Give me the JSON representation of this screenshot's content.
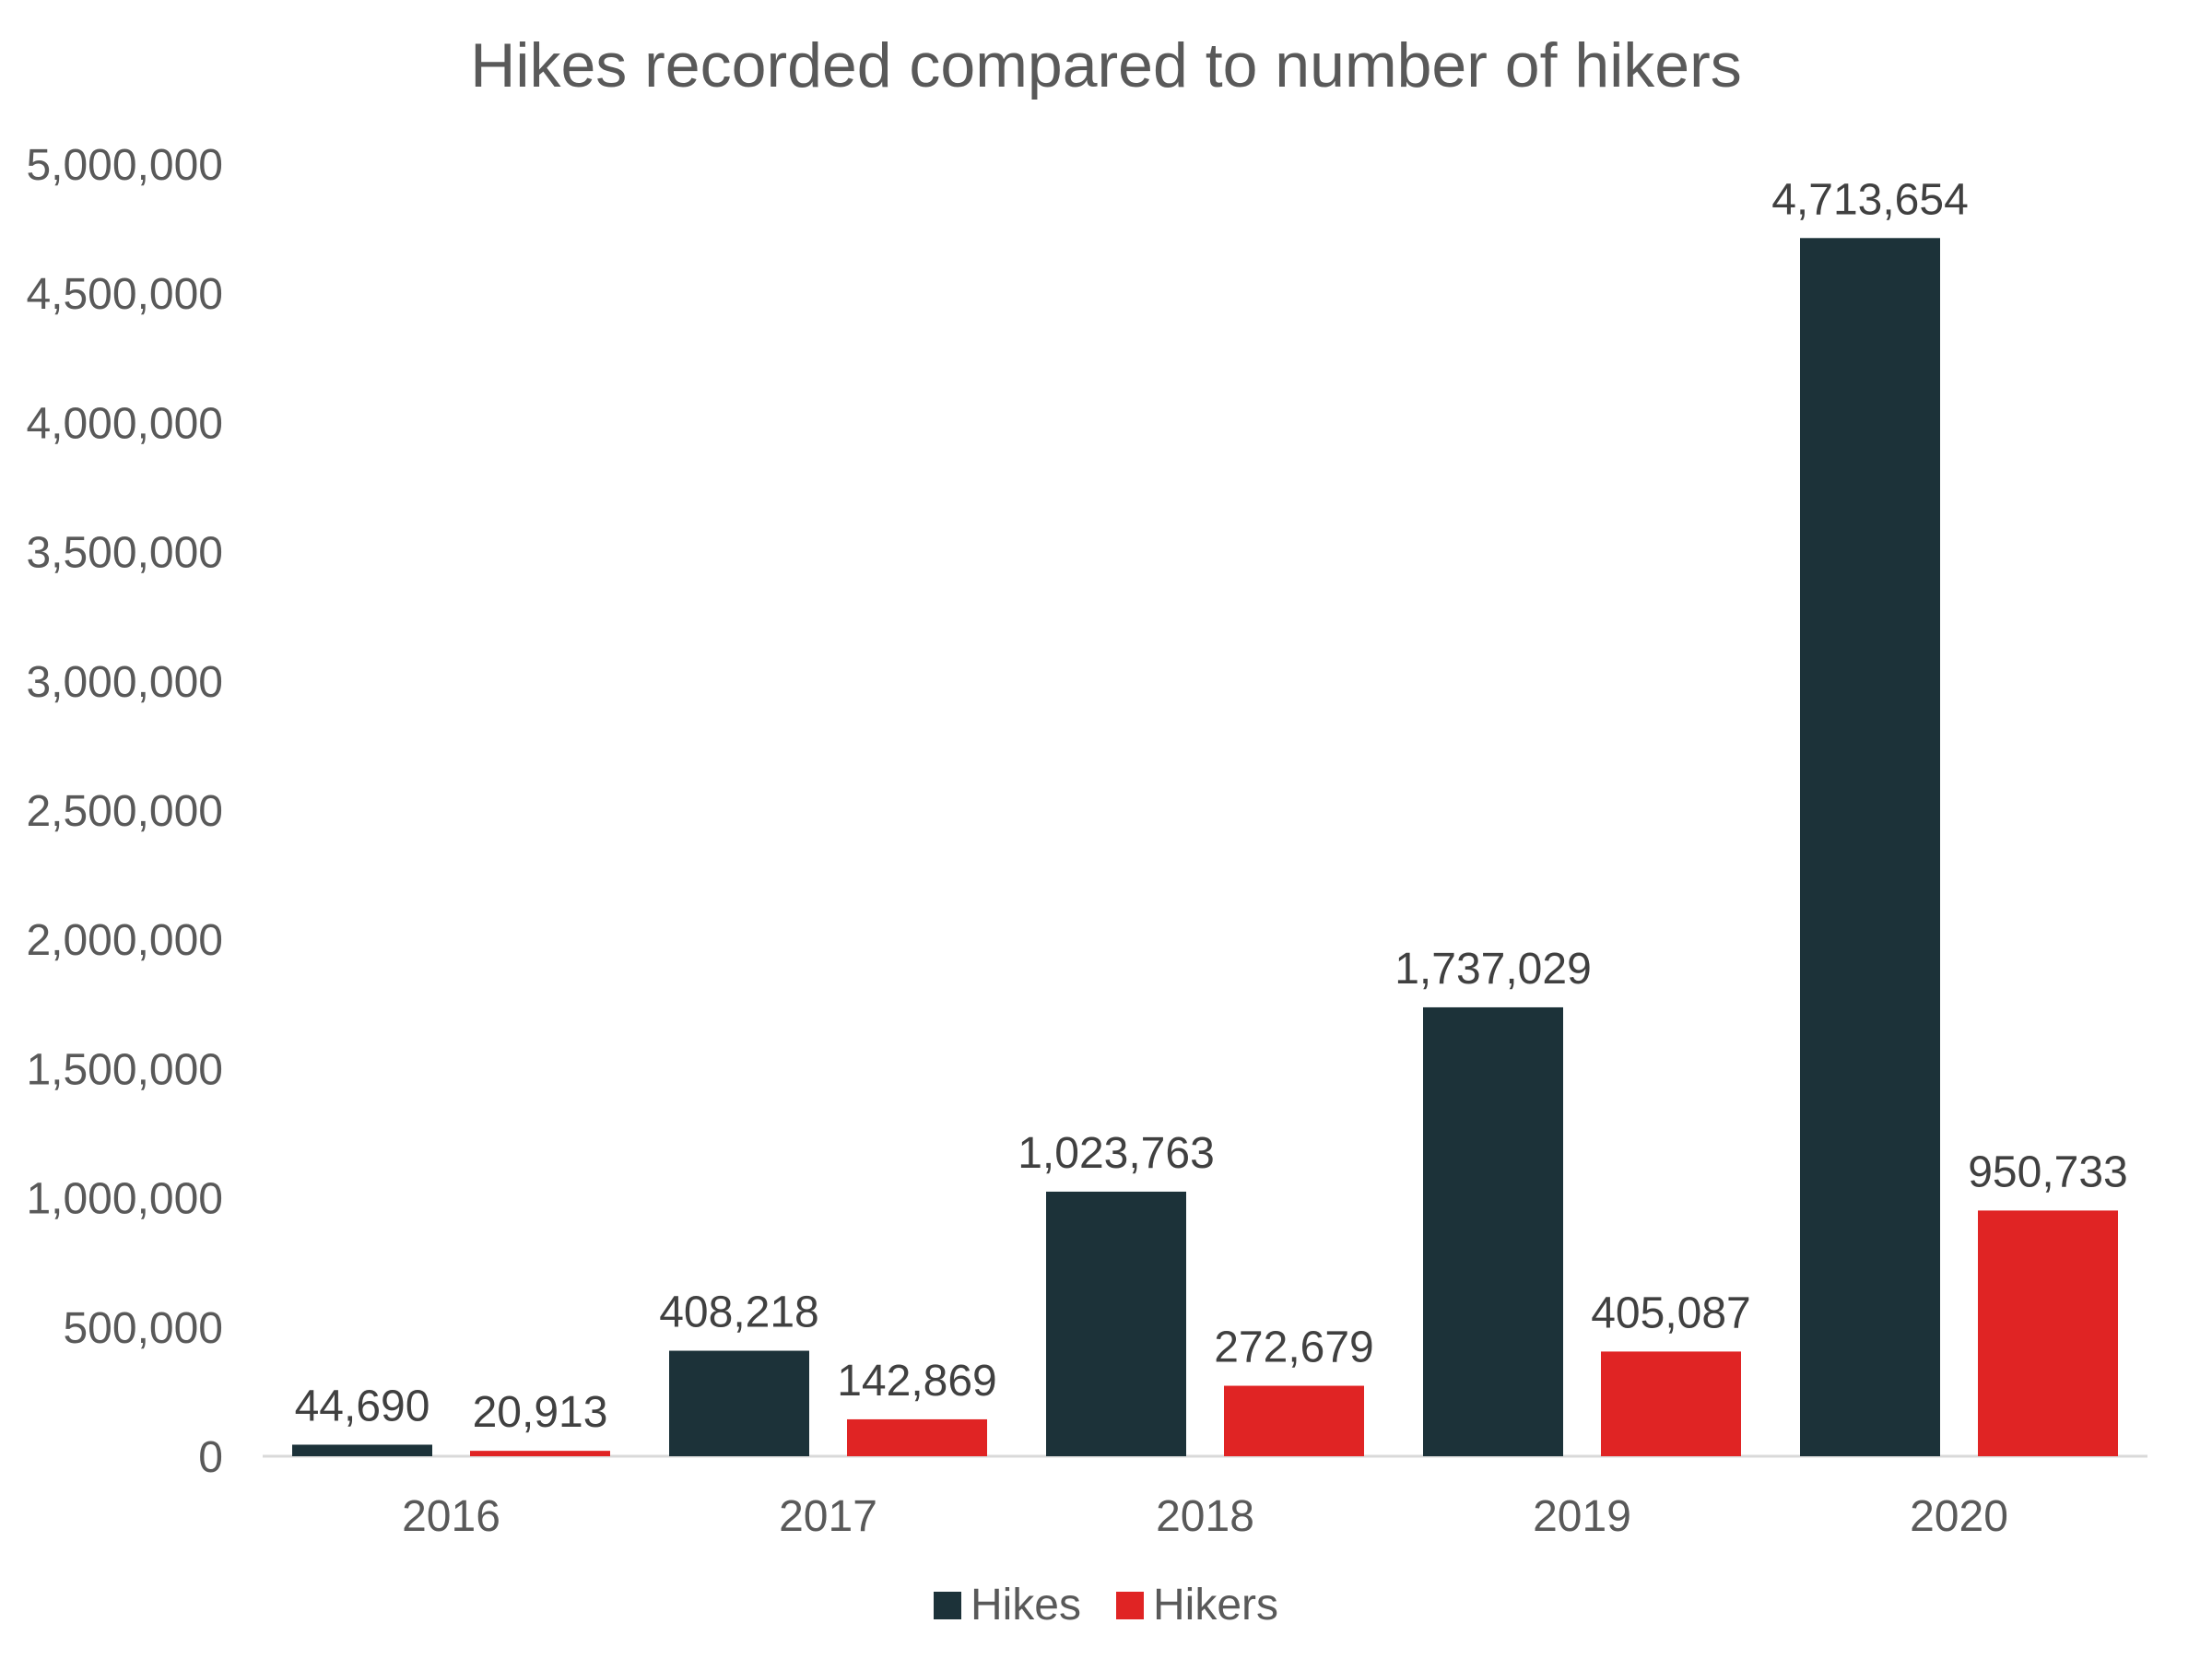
{
  "chart_data": {
    "type": "bar",
    "title": "Hikes recorded compared to number of hikers",
    "xlabel": "",
    "ylabel": "",
    "categories": [
      "2016",
      "2017",
      "2018",
      "2019",
      "2020"
    ],
    "series": [
      {
        "name": "Hikes",
        "color": "#1c3239",
        "values": [
          44690,
          408218,
          1023763,
          1737029,
          4713654
        ],
        "labels": [
          "44,690",
          "408,218",
          "1,023,763",
          "1,737,029",
          "4,713,654"
        ]
      },
      {
        "name": "Hikers",
        "color": "#e02424",
        "values": [
          20913,
          142869,
          272679,
          405087,
          950733
        ],
        "labels": [
          "20,913",
          "142,869",
          "272,679",
          "405,087",
          "950,733"
        ]
      }
    ],
    "ylim": [
      0,
      5000000
    ],
    "yticks": [
      0,
      500000,
      1000000,
      1500000,
      2000000,
      2500000,
      3000000,
      3500000,
      4000000,
      4500000,
      5000000
    ],
    "ytick_labels": [
      "0",
      "500,000",
      "1,000,000",
      "1,500,000",
      "2,000,000",
      "2,500,000",
      "3,000,000",
      "3,500,000",
      "4,000,000",
      "4,500,000",
      "5,000,000"
    ],
    "grid": false,
    "legend_position": "bottom"
  }
}
